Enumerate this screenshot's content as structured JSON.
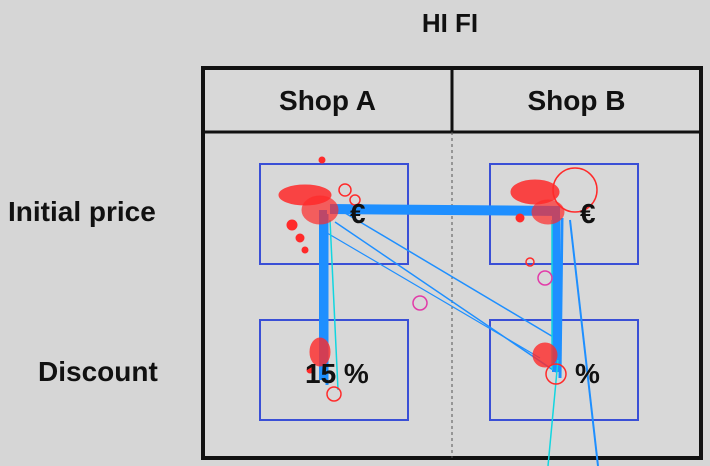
{
  "title": "HI FI",
  "columns": [
    "Shop A",
    "Shop B"
  ],
  "rows": [
    "Initial price",
    "Discount"
  ],
  "cells": {
    "shop_a_price": "€",
    "shop_b_price": "€",
    "shop_a_discount": "15 %",
    "shop_b_discount": "%"
  },
  "colors": {
    "background": "#d6d6d6",
    "aoi_box": "#3a4fd6",
    "scanpath": "#1e8fff",
    "scanpath_alt": "#12d6e0",
    "fixation": "#ff2a2a",
    "fixation_alt": "#e23aa8"
  }
}
